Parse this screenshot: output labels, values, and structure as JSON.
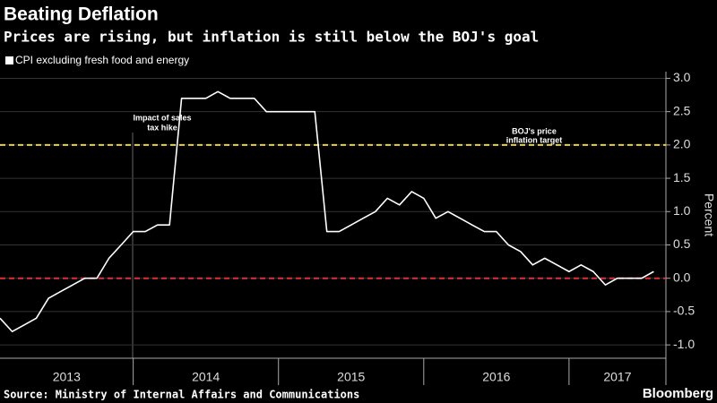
{
  "chart_data": {
    "type": "line",
    "title": "Beating Deflation",
    "subtitle": "Prices are rising, but inflation is still below the BOJ's goal",
    "y_label": "Percent",
    "source": "Source: Ministry of Internal Affairs and Communications",
    "brand": "Bloomberg",
    "annotations": [
      {
        "lines": [
          "Impact of sales",
          "tax hike"
        ]
      },
      {
        "lines": [
          "BOJ's price",
          "inflation target"
        ]
      }
    ],
    "reference_lines": [
      {
        "value": 2,
        "color": "#e8d43a"
      },
      {
        "value": 0,
        "color": "#e0303a"
      }
    ],
    "x": [
      2013.083,
      2013.167,
      2013.25,
      2013.333,
      2013.417,
      2013.5,
      2013.583,
      2013.667,
      2013.75,
      2013.833,
      2013.917,
      2014,
      2014.083,
      2014.167,
      2014.25,
      2014.333,
      2014.417,
      2014.5,
      2014.583,
      2014.667,
      2014.75,
      2014.833,
      2014.917,
      2015,
      2015.083,
      2015.167,
      2015.25,
      2015.333,
      2015.417,
      2015.5,
      2015.583,
      2015.667,
      2015.75,
      2015.833,
      2015.917,
      2016,
      2016.083,
      2016.167,
      2016.25,
      2016.333,
      2016.417,
      2016.5,
      2016.583,
      2016.667,
      2016.75,
      2016.833,
      2016.917,
      2017,
      2017.083,
      2017.167,
      2017.25,
      2017.333,
      2017.417,
      2017.5,
      2017.583
    ],
    "series": [
      {
        "name": "CPI excluding fresh food and energy",
        "color": "#ffffff",
        "values": [
          -0.6,
          -0.8,
          -0.7,
          -0.6,
          -0.3,
          -0.2,
          -0.1,
          0,
          0,
          0.3,
          0.5,
          0.7,
          0.7,
          0.8,
          0.8,
          2.7,
          2.7,
          2.7,
          2.8,
          2.7,
          2.7,
          2.7,
          2.5,
          2.5,
          2.5,
          2.5,
          2.5,
          0.7,
          0.7,
          0.8,
          0.9,
          1.0,
          1.2,
          1.1,
          1.3,
          1.2,
          0.9,
          1.0,
          0.9,
          0.8,
          0.7,
          0.7,
          0.5,
          0.4,
          0.2,
          0.3,
          0.2,
          0.1,
          0.2,
          0.1,
          -0.1,
          0,
          0,
          0,
          0.1
        ]
      }
    ],
    "xlim": [
      2013.083,
      2017.667
    ],
    "xticks": [
      {
        "value": 2013.5,
        "label": "2013"
      },
      {
        "value": 2014.5,
        "label": "2014"
      },
      {
        "value": 2015.5,
        "label": "2015"
      },
      {
        "value": 2016.5,
        "label": "2016"
      },
      {
        "value": 2017.5,
        "label": "2017"
      }
    ],
    "ylim": [
      -1.2,
      3.1
    ],
    "yticks": [
      {
        "value": -1,
        "label": "-1.0"
      },
      {
        "value": -0.5,
        "label": "-0.5"
      },
      {
        "value": 0,
        "label": "0.0"
      },
      {
        "value": 0.5,
        "label": "0.5"
      },
      {
        "value": 1,
        "label": "1.0"
      },
      {
        "value": 1.5,
        "label": "1.5"
      },
      {
        "value": 2,
        "label": "2.0"
      },
      {
        "value": 2.5,
        "label": "2.5"
      },
      {
        "value": 3,
        "label": "3.0"
      }
    ],
    "grid": true
  }
}
